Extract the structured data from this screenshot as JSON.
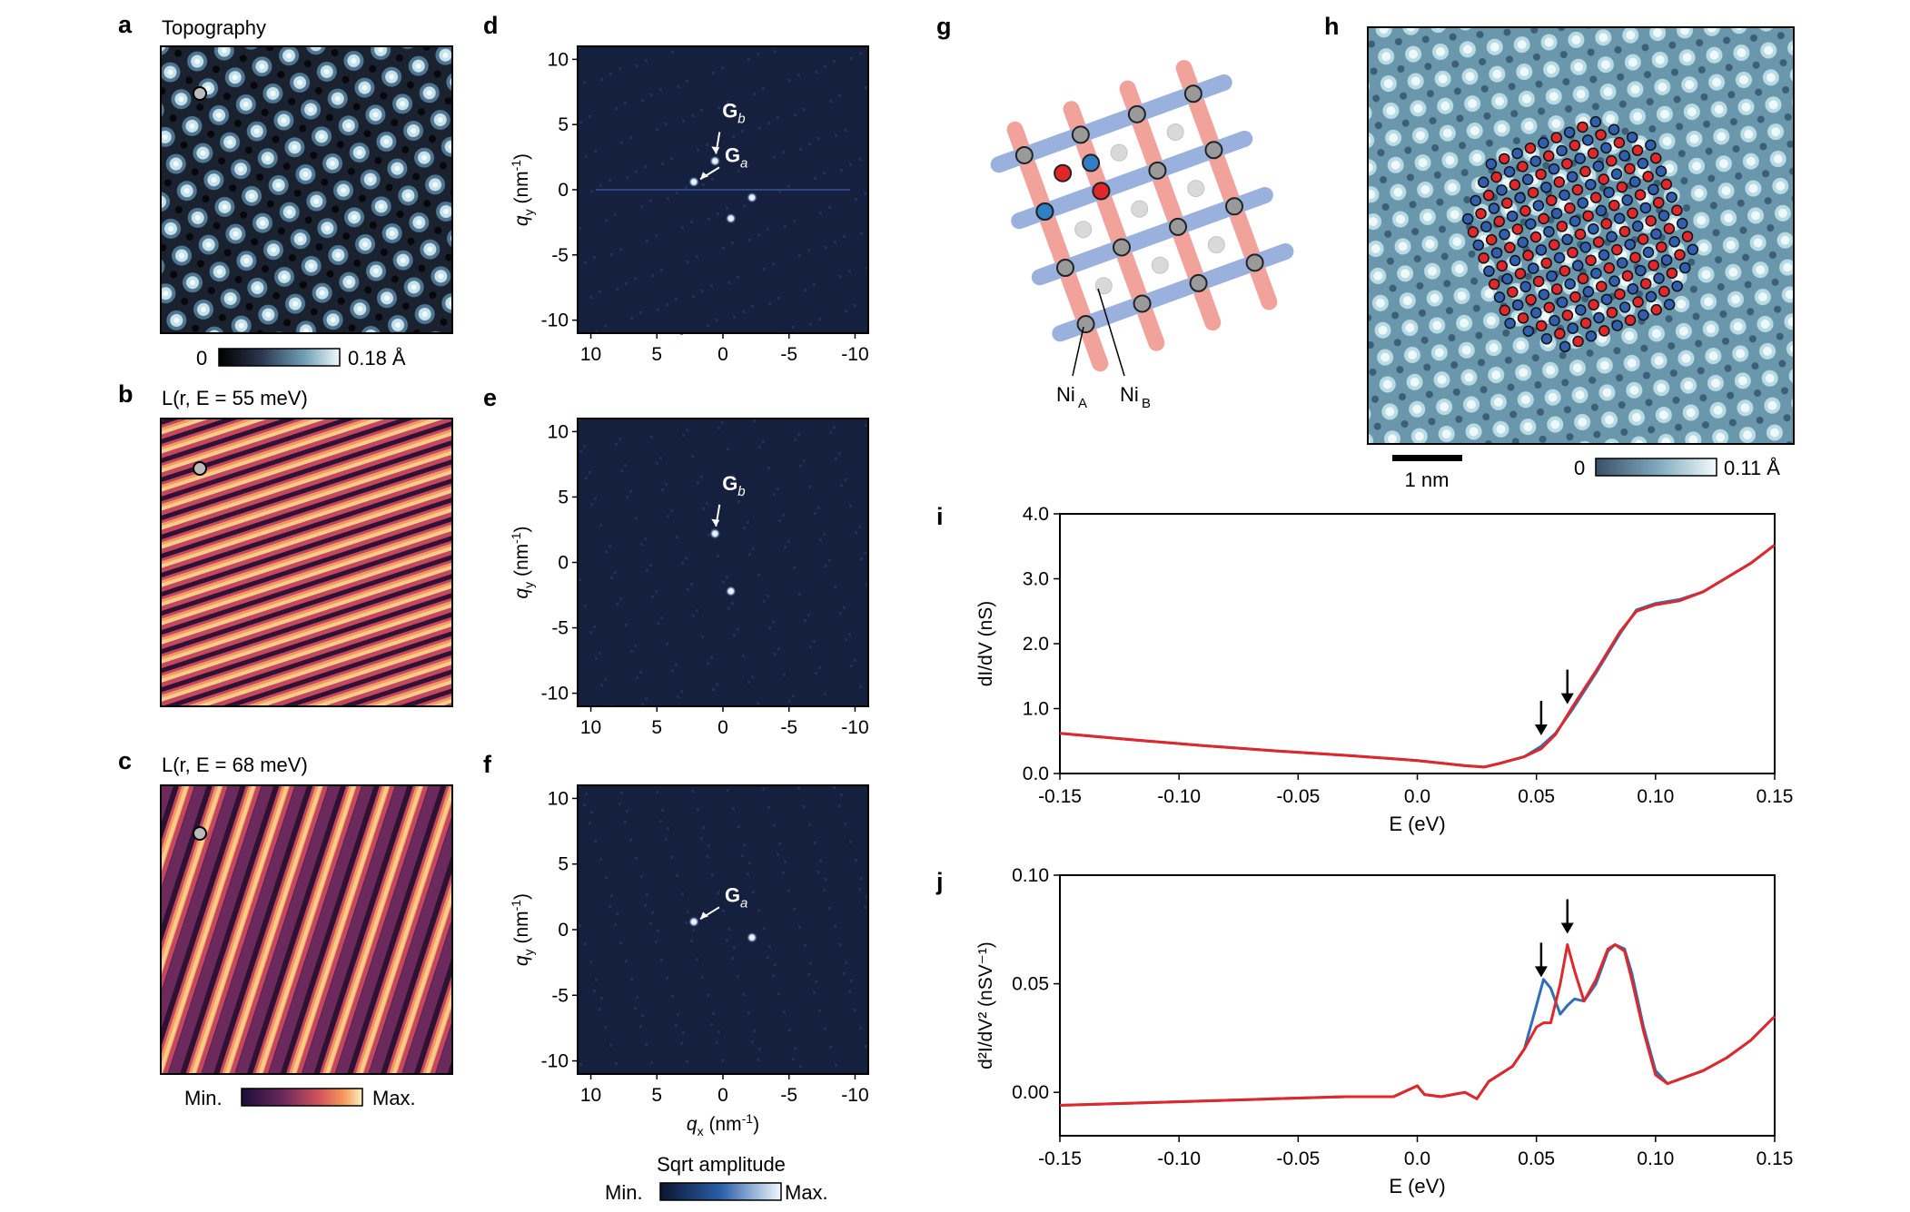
{
  "panels": {
    "a": {
      "letter": "a",
      "title": "Topography",
      "cbar_min": "0",
      "cbar_max": "0.18 Å"
    },
    "b": {
      "letter": "b",
      "title": "L(r, E = 55 meV)"
    },
    "c": {
      "letter": "c",
      "title": "L(r, E = 68 meV)",
      "cbar_min": "Min.",
      "cbar_max": "Max."
    },
    "d": {
      "letter": "d",
      "spot_labels": [
        "G",
        "b",
        "G",
        "a"
      ]
    },
    "e": {
      "letter": "e",
      "spot_labels": [
        "G",
        "b"
      ]
    },
    "f": {
      "letter": "f",
      "spot_labels": [
        "G",
        "a"
      ]
    },
    "g": {
      "letter": "g",
      "labels": [
        "Ni",
        "A",
        "Ni",
        "B"
      ]
    },
    "h": {
      "letter": "h",
      "scalebar": "1 nm",
      "cbar_min": "0",
      "cbar_max": "0.11 Å"
    },
    "i": {
      "letter": "i"
    },
    "j": {
      "letter": "j"
    }
  },
  "fft_axes": {
    "ylabel": "q",
    "ylabel_sub": "y",
    "ylabel_unit": " (nm",
    "ylabel_exp": "-1",
    "ylabel_close": ")",
    "xlabel": "q",
    "xlabel_sub": "x",
    "xlabel_unit": " (nm",
    "xlabel_exp": "-1",
    "xlabel_close": ")",
    "yticks": [
      "10",
      "5",
      "0",
      "-5",
      "-10"
    ],
    "xticks": [
      "10",
      "5",
      "0",
      "-5",
      "-10"
    ],
    "cbar_title": "Sqrt amplitude",
    "cbar_min": "Min.",
    "cbar_max": "Max."
  },
  "chart_data": [
    {
      "type": "line",
      "panel": "i",
      "title": "",
      "xlabel": "E (eV)",
      "ylabel": "dI/dV (nS)",
      "xlim": [
        -0.15,
        0.15
      ],
      "ylim": [
        0.0,
        4.0
      ],
      "xticks": [
        "-0.15",
        "-0.10",
        "-0.05",
        "0.0",
        "0.05",
        "0.10",
        "0.15"
      ],
      "yticks": [
        "0.0",
        "1.0",
        "2.0",
        "3.0",
        "4.0"
      ],
      "arrows_at_E": [
        0.052,
        0.063
      ],
      "series": [
        {
          "name": "blue",
          "color": "#2f6fb6",
          "x": [
            -0.15,
            -0.12,
            -0.09,
            -0.06,
            -0.03,
            0.0,
            0.02,
            0.028,
            0.035,
            0.045,
            0.052,
            0.058,
            0.065,
            0.075,
            0.085,
            0.092,
            0.1,
            0.11,
            0.12,
            0.13,
            0.14,
            0.15
          ],
          "y": [
            0.62,
            0.52,
            0.43,
            0.35,
            0.28,
            0.2,
            0.12,
            0.1,
            0.16,
            0.26,
            0.42,
            0.62,
            0.98,
            1.55,
            2.15,
            2.52,
            2.62,
            2.68,
            2.8,
            3.02,
            3.24,
            3.52
          ]
        },
        {
          "name": "red",
          "color": "#e0272a",
          "x": [
            -0.15,
            -0.12,
            -0.09,
            -0.06,
            -0.03,
            0.0,
            0.02,
            0.028,
            0.035,
            0.045,
            0.052,
            0.058,
            0.065,
            0.075,
            0.085,
            0.092,
            0.1,
            0.11,
            0.12,
            0.13,
            0.14,
            0.15
          ],
          "y": [
            0.62,
            0.52,
            0.43,
            0.35,
            0.28,
            0.2,
            0.12,
            0.1,
            0.16,
            0.26,
            0.38,
            0.6,
            1.02,
            1.58,
            2.18,
            2.5,
            2.6,
            2.66,
            2.8,
            3.02,
            3.24,
            3.52
          ]
        }
      ]
    },
    {
      "type": "line",
      "panel": "j",
      "title": "",
      "xlabel": "E (eV)",
      "ylabel": "d²I/dV² (nSV⁻¹)",
      "xlim": [
        -0.15,
        0.15
      ],
      "ylim": [
        -0.02,
        0.1
      ],
      "xticks": [
        "-0.15",
        "-0.10",
        "-0.05",
        "0.0",
        "0.05",
        "0.10",
        "0.15"
      ],
      "yticks": [
        "0.00",
        "0.05",
        "0.10"
      ],
      "arrows_at_E": [
        0.052,
        0.063
      ],
      "series": [
        {
          "name": "blue",
          "color": "#2f6fb6",
          "x": [
            -0.15,
            -0.12,
            -0.09,
            -0.06,
            -0.03,
            -0.01,
            0.0,
            0.003,
            0.01,
            0.02,
            0.025,
            0.03,
            0.04,
            0.045,
            0.05,
            0.053,
            0.056,
            0.06,
            0.063,
            0.066,
            0.07,
            0.075,
            0.08,
            0.083,
            0.087,
            0.09,
            0.095,
            0.1,
            0.105,
            0.11,
            0.12,
            0.13,
            0.14,
            0.15
          ],
          "y": [
            -0.006,
            -0.005,
            -0.004,
            -0.003,
            -0.002,
            -0.002,
            0.003,
            -0.001,
            -0.002,
            0.0,
            -0.003,
            0.005,
            0.012,
            0.02,
            0.04,
            0.052,
            0.048,
            0.036,
            0.04,
            0.043,
            0.042,
            0.05,
            0.065,
            0.068,
            0.066,
            0.055,
            0.03,
            0.01,
            0.004,
            0.006,
            0.01,
            0.016,
            0.024,
            0.035
          ]
        },
        {
          "name": "red",
          "color": "#e0272a",
          "x": [
            -0.15,
            -0.12,
            -0.09,
            -0.06,
            -0.03,
            -0.01,
            0.0,
            0.003,
            0.01,
            0.02,
            0.025,
            0.03,
            0.04,
            0.045,
            0.05,
            0.053,
            0.056,
            0.06,
            0.063,
            0.066,
            0.07,
            0.075,
            0.08,
            0.083,
            0.087,
            0.09,
            0.095,
            0.1,
            0.105,
            0.11,
            0.12,
            0.13,
            0.14,
            0.15
          ],
          "y": [
            -0.006,
            -0.005,
            -0.004,
            -0.003,
            -0.002,
            -0.002,
            0.003,
            -0.001,
            -0.002,
            0.0,
            -0.003,
            0.005,
            0.012,
            0.02,
            0.03,
            0.032,
            0.032,
            0.05,
            0.068,
            0.056,
            0.042,
            0.052,
            0.066,
            0.068,
            0.065,
            0.052,
            0.028,
            0.008,
            0.004,
            0.006,
            0.01,
            0.016,
            0.024,
            0.035
          ]
        }
      ]
    }
  ]
}
